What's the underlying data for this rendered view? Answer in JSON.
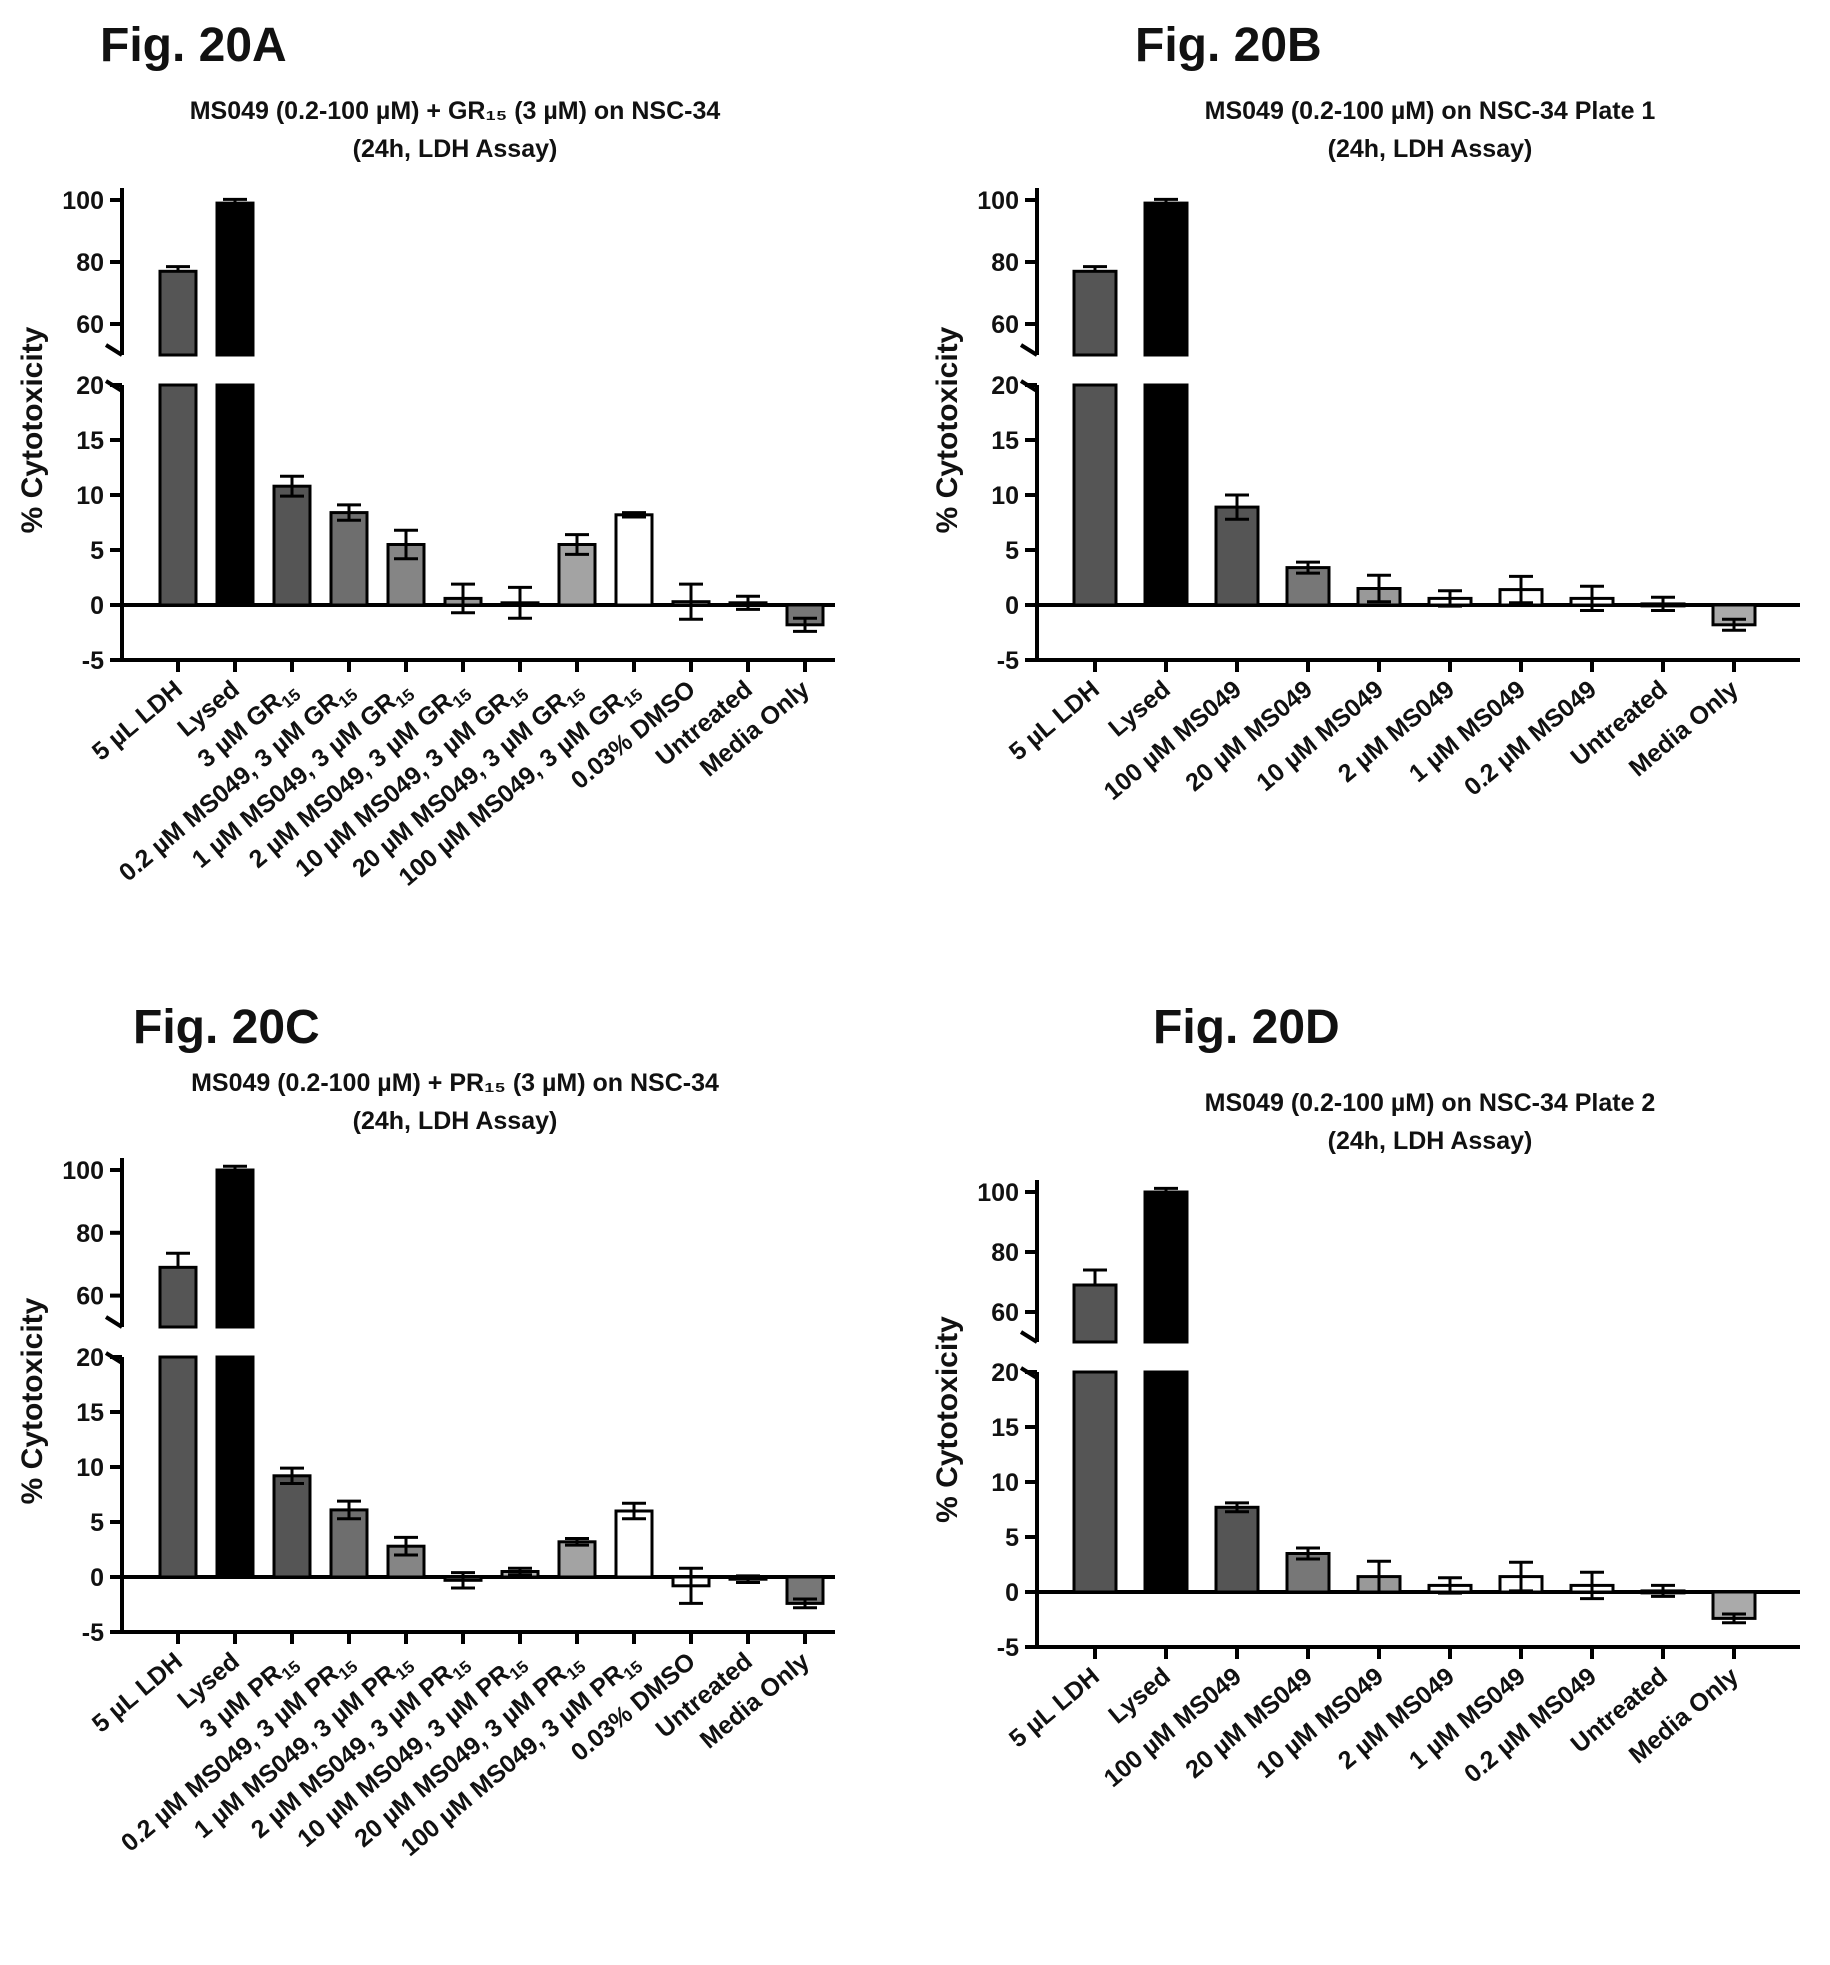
{
  "chart_data": [
    {
      "type": "bar",
      "panel": "Fig. 20A",
      "title": "MS049 (0.2-100 µM) + GR₁₅ (3 µM) on NSC-34",
      "subtitle": "(24h, LDH Assay)",
      "ylabel": "% Cytotoxicity",
      "ylim_lower": [
        -5,
        20
      ],
      "ylim_upper": [
        50,
        100
      ],
      "y_ticks_lower": [
        "-5",
        "0",
        "5",
        "10",
        "15",
        "20"
      ],
      "y_ticks_upper": [
        "60",
        "80",
        "100"
      ],
      "categories": [
        "5 µL LDH",
        "Lysed",
        "3 µM GR₁₅",
        "0.2 µM MS049, 3 µM GR₁₅",
        "1 µM MS049, 3 µM GR₁₅",
        "2 µM MS049, 3 µM GR₁₅",
        "10 µM MS049, 3 µM GR₁₅",
        "20 µM MS049, 3 µM GR₁₅",
        "100 µM MS049, 3 µM GR₁₅",
        "0.03% DMSO",
        "Untreated",
        "Media Only"
      ],
      "values": [
        77,
        99,
        10.8,
        8.4,
        5.5,
        0.6,
        0.2,
        5.5,
        8.2,
        0.3,
        0.2,
        -1.8
      ],
      "errors": [
        1.5,
        1.2,
        0.9,
        0.7,
        1.3,
        1.3,
        1.4,
        0.9,
        0.2,
        1.6,
        0.6,
        0.6
      ],
      "colors": [
        "#555555",
        "#000000",
        "#555555",
        "#6e6e6e",
        "#858585",
        "#999999",
        "#b3b3b3",
        "#a3a3a3",
        "#ffffff",
        "#ffffff",
        "#ffffff",
        "#777777"
      ]
    },
    {
      "type": "bar",
      "panel": "Fig. 20B",
      "title": "MS049 (0.2-100 µM) on NSC-34 Plate 1",
      "subtitle": "(24h, LDH Assay)",
      "ylabel": "% Cytotoxicity",
      "ylim_lower": [
        -5,
        20
      ],
      "ylim_upper": [
        50,
        100
      ],
      "y_ticks_lower": [
        "-5",
        "0",
        "5",
        "10",
        "15",
        "20"
      ],
      "y_ticks_upper": [
        "60",
        "80",
        "100"
      ],
      "categories": [
        "5 µL LDH",
        "Lysed",
        "100 µM MS049",
        "20 µM MS049",
        "10 µM MS049",
        "2 µM MS049",
        "1 µM MS049",
        "0.2 µM MS049",
        "Untreated",
        "Media Only"
      ],
      "values": [
        77,
        99,
        8.9,
        3.4,
        1.5,
        0.6,
        1.4,
        0.6,
        0.1,
        -1.8
      ],
      "errors": [
        1.5,
        1.2,
        1.1,
        0.5,
        1.2,
        0.7,
        1.2,
        1.1,
        0.6,
        0.5
      ],
      "colors": [
        "#555555",
        "#000000",
        "#555555",
        "#777777",
        "#999999",
        "#ffffff",
        "#ffffff",
        "#ffffff",
        "#ffffff",
        "#aaaaaa"
      ]
    },
    {
      "type": "bar",
      "panel": "Fig. 20C",
      "title": "MS049 (0.2-100 µM) + PR₁₅ (3 µM) on NSC-34",
      "subtitle": "(24h, LDH Assay)",
      "ylabel": "% Cytotoxicity",
      "ylim_lower": [
        -5,
        20
      ],
      "ylim_upper": [
        50,
        100
      ],
      "y_ticks_lower": [
        "-5",
        "0",
        "5",
        "10",
        "15",
        "20"
      ],
      "y_ticks_upper": [
        "60",
        "80",
        "100"
      ],
      "categories": [
        "5 µL LDH",
        "Lysed",
        "3 µM PR₁₅",
        "0.2 µM MS049, 3 µM PR₁₅",
        "1 µM MS049, 3 µM PR₁₅",
        "2 µM MS049, 3 µM PR₁₅",
        "10 µM MS049, 3 µM PR₁₅",
        "20 µM MS049, 3 µM PR₁₅",
        "100 µM MS049, 3 µM PR₁₅",
        "0.03% DMSO",
        "Untreated",
        "Media Only"
      ],
      "values": [
        69,
        100,
        9.2,
        6.1,
        2.8,
        -0.3,
        0.5,
        3.2,
        6.0,
        -0.8,
        -0.2,
        -2.4
      ],
      "errors": [
        4.5,
        1.2,
        0.7,
        0.8,
        0.8,
        0.7,
        0.3,
        0.3,
        0.7,
        1.6,
        0.3,
        0.4
      ],
      "colors": [
        "#555555",
        "#000000",
        "#555555",
        "#6e6e6e",
        "#858585",
        "#999999",
        "#b3b3b3",
        "#a3a3a3",
        "#ffffff",
        "#ffffff",
        "#ffffff",
        "#777777"
      ]
    },
    {
      "type": "bar",
      "panel": "Fig. 20D",
      "title": "MS049 (0.2-100 µM) on NSC-34 Plate 2",
      "subtitle": "(24h, LDH Assay)",
      "ylabel": "% Cytotoxicity",
      "ylim_lower": [
        -5,
        20
      ],
      "ylim_upper": [
        50,
        100
      ],
      "y_ticks_lower": [
        "-5",
        "0",
        "5",
        "10",
        "15",
        "20"
      ],
      "y_ticks_upper": [
        "60",
        "80",
        "100"
      ],
      "categories": [
        "5 µL LDH",
        "Lysed",
        "100 µM MS049",
        "20 µM MS049",
        "10 µM MS049",
        "2 µM MS049",
        "1 µM MS049",
        "0.2 µM MS049",
        "Untreated",
        "Media Only"
      ],
      "values": [
        69,
        100,
        7.7,
        3.5,
        1.4,
        0.6,
        1.4,
        0.6,
        0.1,
        -2.4
      ],
      "errors": [
        5.0,
        1.2,
        0.4,
        0.5,
        1.4,
        0.7,
        1.3,
        1.2,
        0.5,
        0.4
      ],
      "colors": [
        "#555555",
        "#000000",
        "#555555",
        "#777777",
        "#999999",
        "#ffffff",
        "#ffffff",
        "#ffffff",
        "#ffffff",
        "#aaaaaa"
      ]
    }
  ]
}
